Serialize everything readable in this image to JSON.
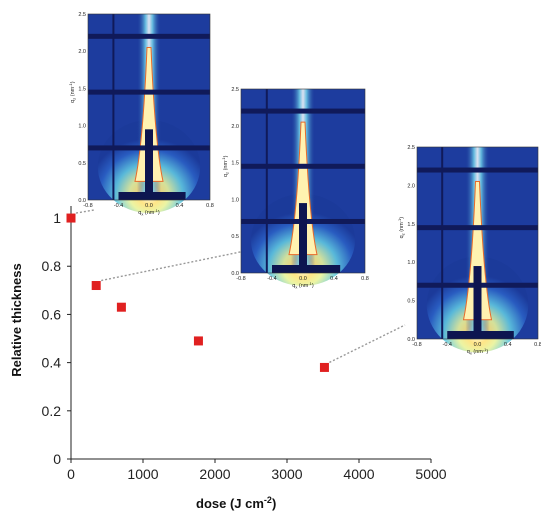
{
  "chart_data": {
    "type": "scatter",
    "xlabel": "dose (J cm",
    "xlabel_sup": "-2",
    "xlabel_close": ")",
    "ylabel": "Relative thickness",
    "xlim": [
      0,
      5000
    ],
    "ylim": [
      0,
      1.05
    ],
    "x_ticks": [
      "0",
      "1000",
      "2000",
      "3000",
      "4000",
      "5000"
    ],
    "y_ticks": [
      "0",
      "0.2",
      "0.4",
      "0.6",
      "0.8",
      "1"
    ],
    "grid": false,
    "marker_color": "#e02020",
    "points": [
      {
        "x": 0,
        "y": 1.0
      },
      {
        "x": 350,
        "y": 0.72
      },
      {
        "x": 700,
        "y": 0.63
      },
      {
        "x": 1770,
        "y": 0.49
      },
      {
        "x": 3520,
        "y": 0.38
      }
    ],
    "insets": {
      "linked_point_indices": [
        0,
        1,
        4
      ],
      "qz_label": "q",
      "qz_sub": "z",
      "qz_unit": "(nm",
      "qz_unit_sup": "-1",
      "qz_unit_close": ")",
      "qx_label": "q",
      "qx_sub": "x",
      "qx_unit": "(nm",
      "qx_unit_sup": "-1",
      "qx_unit_close": ")",
      "qz_ticks": [
        "0.0",
        "0.5",
        "1.0",
        "1.5",
        "2.0",
        "2.5"
      ],
      "qx_ticks": [
        "-0.8",
        "-0.4",
        "0.0",
        "0.4",
        "0.8"
      ],
      "qz_range": [
        0,
        2.5
      ],
      "qx_range": [
        -0.8,
        0.8
      ]
    }
  }
}
